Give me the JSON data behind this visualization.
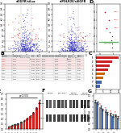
{
  "bg_color": "#ffffff",
  "volcano_blue": "#2222bb",
  "volcano_red": "#cc2222",
  "volcano_gray": "#999999",
  "volcano_orange": "#ff8800",
  "bar_red": "#cc2222",
  "bar_blue": "#4466aa",
  "bar_gray": "#888888",
  "bar_darkgray": "#555555",
  "panel_A1_title": "siEGFR/siLuc",
  "panel_A2_title": "siPOLR2E/siEGFR",
  "xlabel_volcano": "Log2 Fold Change",
  "ylabel_volcano": "-log10 p-value"
}
